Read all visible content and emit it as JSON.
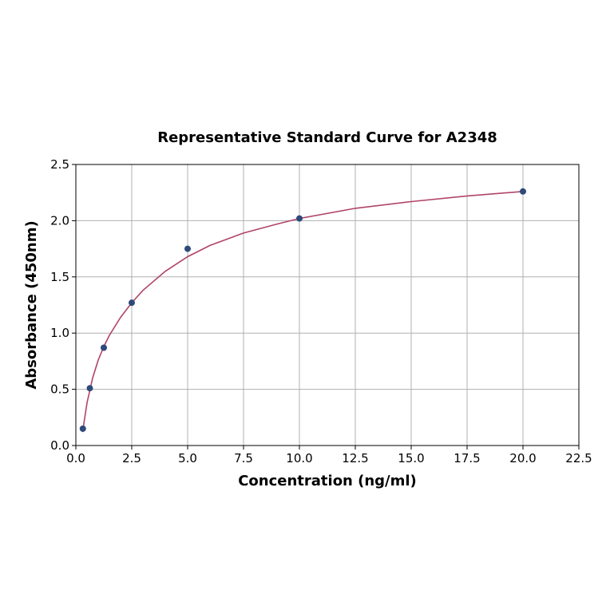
{
  "chart_data": {
    "type": "scatter",
    "title": "Representative Standard Curve for A2348",
    "xlabel": "Concentration (ng/ml)",
    "ylabel": "Absorbance (450nm)",
    "xlim": [
      0,
      22.5
    ],
    "ylim": [
      0,
      2.5
    ],
    "grid": true,
    "x_ticks": [
      "0.0",
      "2.5",
      "5.0",
      "7.5",
      "10.0",
      "12.5",
      "15.0",
      "17.5",
      "20.0",
      "22.5"
    ],
    "y_ticks": [
      "0.0",
      "0.5",
      "1.0",
      "1.5",
      "2.0",
      "2.5"
    ],
    "series": [
      {
        "x": [
          0.313,
          0.625,
          1.25,
          2.5,
          5.0,
          10.0,
          20.0
        ],
        "y": [
          0.15,
          0.51,
          0.87,
          1.27,
          1.75,
          2.02,
          2.26
        ]
      }
    ],
    "fit_curve": {
      "x": [
        0.3,
        0.5,
        0.75,
        1.0,
        1.25,
        1.5,
        2.0,
        2.5,
        3.0,
        4.0,
        5.0,
        6.0,
        7.5,
        9.0,
        10.0,
        12.5,
        15.0,
        17.5,
        20.0
      ],
      "y": [
        0.12,
        0.38,
        0.6,
        0.76,
        0.88,
        0.98,
        1.14,
        1.27,
        1.38,
        1.55,
        1.68,
        1.78,
        1.89,
        1.97,
        2.02,
        2.11,
        2.17,
        2.22,
        2.26
      ]
    },
    "colors": {
      "marker": "#2e4a7a",
      "curve": "#b0446a"
    }
  }
}
